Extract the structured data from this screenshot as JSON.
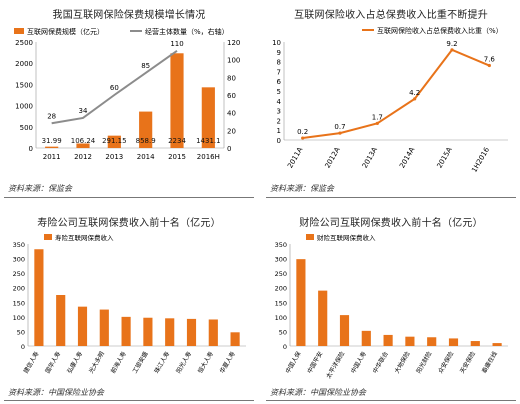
{
  "chart_data": [
    {
      "type": "bar",
      "title": "我国互联网保险保费规模增长情况",
      "categories": [
        "2011",
        "2012",
        "2013",
        "2014",
        "2015",
        "2016H"
      ],
      "series": [
        {
          "name": "互联网保费规模（亿元）",
          "type": "bar",
          "axis": "left",
          "values": [
            31.99,
            106.24,
            291.15,
            858.9,
            2234,
            1431.1
          ],
          "labels": [
            "31.99",
            "106.24",
            "291.15",
            "858.9",
            "2234",
            "1431.1"
          ]
        },
        {
          "name": "经营主体数量（%，右轴）",
          "type": "line",
          "axis": "right",
          "values": [
            28,
            34,
            60,
            85,
            110,
            null
          ],
          "labels": [
            "28",
            "34",
            "60",
            "85",
            "110",
            ""
          ]
        }
      ],
      "ylim_left": [
        0,
        2500
      ],
      "yticks_left": [
        "0",
        "500",
        "1000",
        "1500",
        "2000",
        "2500"
      ],
      "ylim_right": [
        0,
        120
      ],
      "yticks_right": [
        "0",
        "20",
        "40",
        "60",
        "80",
        "100",
        "120"
      ],
      "colors": {
        "bar": "#e8731a",
        "line": "#8c8c8c"
      },
      "source": "资料来源：保监会"
    },
    {
      "type": "line",
      "title": "互联网保险收入占总保费收入比重不断提升",
      "categories": [
        "2011A",
        "2012A",
        "2013A",
        "2014A",
        "2015A",
        "1H2016"
      ],
      "series": [
        {
          "name": "互联网保险收入占总保费收入比重（%）",
          "values": [
            0.2,
            0.7,
            1.7,
            4.2,
            9.2,
            7.6
          ],
          "labels": [
            "0.2",
            "0.7",
            "1.7",
            "4.2",
            "9.2",
            "7.6"
          ]
        }
      ],
      "ylim": [
        0,
        10
      ],
      "yticks": [
        "0",
        "1",
        "2",
        "3",
        "4",
        "5",
        "6",
        "7",
        "8",
        "9",
        "10"
      ],
      "colors": {
        "line": "#e8731a"
      },
      "source": "资料来源：保监会"
    },
    {
      "type": "bar",
      "title": "寿险公司互联网保费收入前十名（亿元）",
      "categories": [
        "建信人寿",
        "国华人寿",
        "弘康人寿",
        "光大永明",
        "前海人寿",
        "工银安盛",
        "珠江人寿",
        "阳光人寿",
        "恒大人寿",
        "华夏人寿"
      ],
      "series": [
        {
          "name": "寿险互联网保费收入",
          "values": [
            332,
            175,
            135,
            125,
            100,
            97,
            95,
            93,
            91,
            47
          ]
        }
      ],
      "ylim": [
        0,
        350
      ],
      "yticks": [
        "0",
        "50",
        "100",
        "150",
        "200",
        "250",
        "300",
        "350"
      ],
      "colors": {
        "bar": "#e8731a"
      },
      "source": "资料来源：中国保险业协会"
    },
    {
      "type": "bar",
      "title": "财险公司互联网保费收入前十名（亿元）",
      "categories": [
        "中国人保",
        "中国平安",
        "太平洋保险",
        "中国人寿",
        "中华联合",
        "大地保险",
        "阳光财险",
        "众安保险",
        "天安保险",
        "泰康在线"
      ],
      "series": [
        {
          "name": "财险互联网保费收入",
          "values": [
            298,
            190,
            106,
            52,
            38,
            32,
            30,
            26,
            17,
            10
          ]
        }
      ],
      "ylim": [
        0,
        350
      ],
      "yticks": [
        "0",
        "50",
        "100",
        "150",
        "200",
        "250",
        "300",
        "350"
      ],
      "colors": {
        "bar": "#e8731a"
      },
      "source": "资料来源：中国保险业协会"
    }
  ]
}
